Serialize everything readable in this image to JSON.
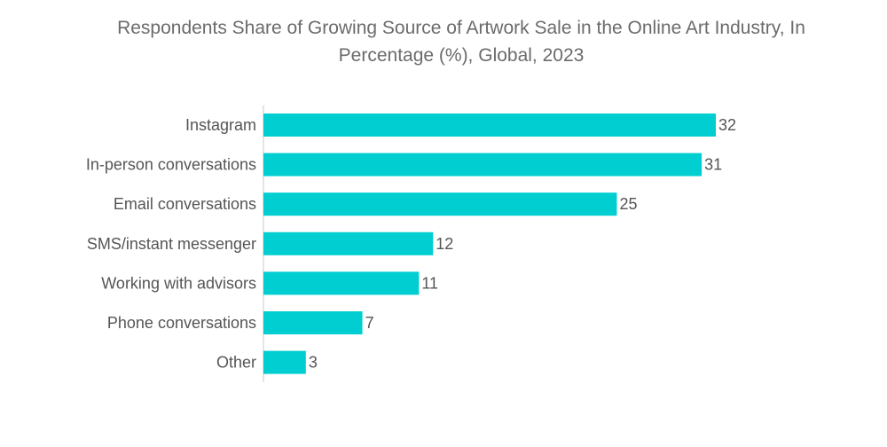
{
  "chart_data": {
    "type": "bar",
    "orientation": "horizontal",
    "title_lines": [
      "Respondents Share of Growing Source of Artwork Sale in the Online Art Industry, In",
      "Percentage (%), Global, 2023"
    ],
    "categories": [
      "Instagram",
      "In-person conversations",
      "Email conversations",
      "SMS/instant messenger",
      "Working with advisors",
      "Phone conversations",
      "Other"
    ],
    "values": [
      32,
      31,
      25,
      12,
      11,
      7,
      3
    ],
    "value_labels": [
      "32",
      "31",
      "25",
      "12",
      "11",
      "7",
      "3"
    ],
    "xlim": [
      0,
      32
    ],
    "grid": false,
    "legend": "none",
    "bar_color": "#00ced1"
  }
}
